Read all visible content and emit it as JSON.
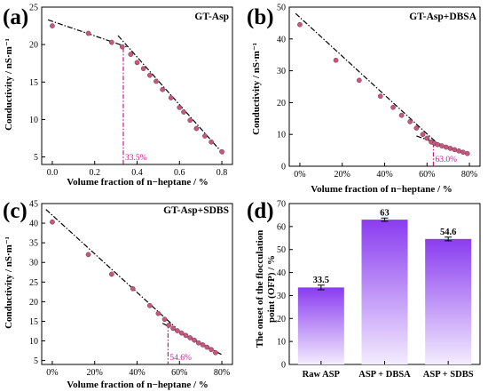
{
  "chart_data": [
    {
      "type": "scatter",
      "panel": "(a)",
      "title": "GT-Asp",
      "xlabel": "Volume fraction of n−heptane / %",
      "ylabel": "Conductivity / nS·m⁻¹",
      "xlim": [
        -0.05,
        0.85
      ],
      "ylim": [
        4,
        25
      ],
      "xticks": [
        0.0,
        0.2,
        0.4,
        0.6,
        0.8
      ],
      "xtick_labels": [
        "0.0",
        "0.2",
        "0.4",
        "0.6",
        "0.8"
      ],
      "yticks": [
        5,
        10,
        15,
        20,
        25
      ],
      "ytick_labels": [
        "5",
        "10",
        "15",
        "20",
        "25"
      ],
      "x": [
        0.0,
        0.17,
        0.28,
        0.33,
        0.37,
        0.4,
        0.43,
        0.46,
        0.49,
        0.52,
        0.56,
        0.6,
        0.62,
        0.65,
        0.68,
        0.72,
        0.75,
        0.8
      ],
      "y": [
        22.5,
        21.5,
        20.3,
        19.7,
        18.7,
        17.6,
        16.8,
        15.9,
        15.1,
        14.0,
        12.9,
        11.6,
        11.0,
        9.9,
        8.8,
        7.8,
        7.0,
        5.7
      ],
      "fit_lines": [
        {
          "x": [
            -0.02,
            0.35
          ],
          "y": [
            23.3,
            19.7
          ]
        },
        {
          "x": [
            0.31,
            0.81
          ],
          "y": [
            21.2,
            5.3
          ]
        }
      ],
      "marker_x": 0.335,
      "marker_label": "33.5%",
      "grid": false
    },
    {
      "type": "scatter",
      "panel": "(b)",
      "title": "GT-Asp+DBSA",
      "xlabel": "Volume fraction of n−heptane / %",
      "ylabel": "Conductivity / nS·m⁻¹",
      "xlim": [
        -0.05,
        0.85
      ],
      "ylim": [
        0,
        50
      ],
      "xticks": [
        0.0,
        0.2,
        0.4,
        0.6,
        0.8
      ],
      "xtick_labels": [
        "0%",
        "20%",
        "40%",
        "60%",
        "80%"
      ],
      "yticks": [
        0,
        10,
        20,
        30,
        40,
        50
      ],
      "ytick_labels": [
        "0",
        "10",
        "20",
        "30",
        "40",
        "50"
      ],
      "x": [
        0.0,
        0.17,
        0.28,
        0.38,
        0.44,
        0.48,
        0.52,
        0.55,
        0.58,
        0.6,
        0.62,
        0.635,
        0.65,
        0.67,
        0.69,
        0.71,
        0.73,
        0.75,
        0.77,
        0.79
      ],
      "y": [
        44.5,
        33.3,
        27.0,
        22.0,
        18.5,
        16.0,
        14.0,
        12.0,
        10.0,
        8.8,
        7.6,
        7.2,
        6.8,
        6.4,
        6.0,
        5.6,
        5.2,
        4.8,
        4.4,
        4.0
      ],
      "fit_lines": [
        {
          "x": [
            -0.02,
            0.66
          ],
          "y": [
            48.0,
            6.5
          ]
        },
        {
          "x": [
            0.55,
            0.81
          ],
          "y": [
            9.5,
            3.5
          ]
        }
      ],
      "marker_x": 0.63,
      "marker_label": "63.0%",
      "grid": false
    },
    {
      "type": "scatter",
      "panel": "(c)",
      "title": "GT-Asp+SDBS",
      "xlabel": "Volume fraction of n−heptane / %",
      "ylabel": "Conductivity / nS·m⁻¹",
      "xlim": [
        -0.05,
        0.85
      ],
      "ylim": [
        4,
        45
      ],
      "xticks": [
        0.0,
        0.2,
        0.4,
        0.6,
        0.8
      ],
      "xtick_labels": [
        "0%",
        "20%",
        "40%",
        "60%",
        "80%"
      ],
      "yticks": [
        5,
        10,
        15,
        20,
        25,
        30,
        35,
        40,
        45
      ],
      "ytick_labels": [
        "5",
        "10",
        "15",
        "20",
        "25",
        "30",
        "35",
        "40",
        "45"
      ],
      "x": [
        0.0,
        0.17,
        0.28,
        0.38,
        0.46,
        0.5,
        0.53,
        0.55,
        0.57,
        0.59,
        0.61,
        0.63,
        0.65,
        0.67,
        0.69,
        0.71,
        0.73,
        0.75,
        0.77
      ],
      "y": [
        40.3,
        32.0,
        27.0,
        23.3,
        19.0,
        17.0,
        15.5,
        14.0,
        13.2,
        12.6,
        12.0,
        11.4,
        10.8,
        10.2,
        9.5,
        9.0,
        8.4,
        7.8,
        7.0
      ],
      "fit_lines": [
        {
          "x": [
            -0.03,
            0.58
          ],
          "y": [
            43.5,
            13.5
          ]
        },
        {
          "x": [
            0.52,
            0.8
          ],
          "y": [
            14.5,
            6.5
          ]
        }
      ],
      "marker_x": 0.546,
      "marker_label": "54.6%",
      "grid": false
    },
    {
      "type": "bar",
      "panel": "(d)",
      "title": "",
      "xlabel": "",
      "ylabel": "The onset of the flocculation point (OFP) / %",
      "categories": [
        "Raw ASP",
        "ASP + DBSA",
        "ASP + SDBS"
      ],
      "values": [
        33.5,
        63,
        54.6
      ],
      "value_labels": [
        "33.5",
        "63",
        "54.6"
      ],
      "errors": [
        1.0,
        0.7,
        0.8
      ],
      "ylim": [
        0,
        70
      ],
      "yticks": [
        0,
        10,
        20,
        30,
        40,
        50,
        60,
        70
      ],
      "ytick_labels": [
        "0",
        "10",
        "20",
        "30",
        "40",
        "50",
        "60",
        "70"
      ],
      "bar_color_top": "#8a3cf0",
      "bar_color_bottom": "#f3ecfe",
      "grid": false
    }
  ],
  "colors": {
    "points": "#c35a7c",
    "marker_line": "#c41a8f",
    "fit_line": "#000000"
  }
}
